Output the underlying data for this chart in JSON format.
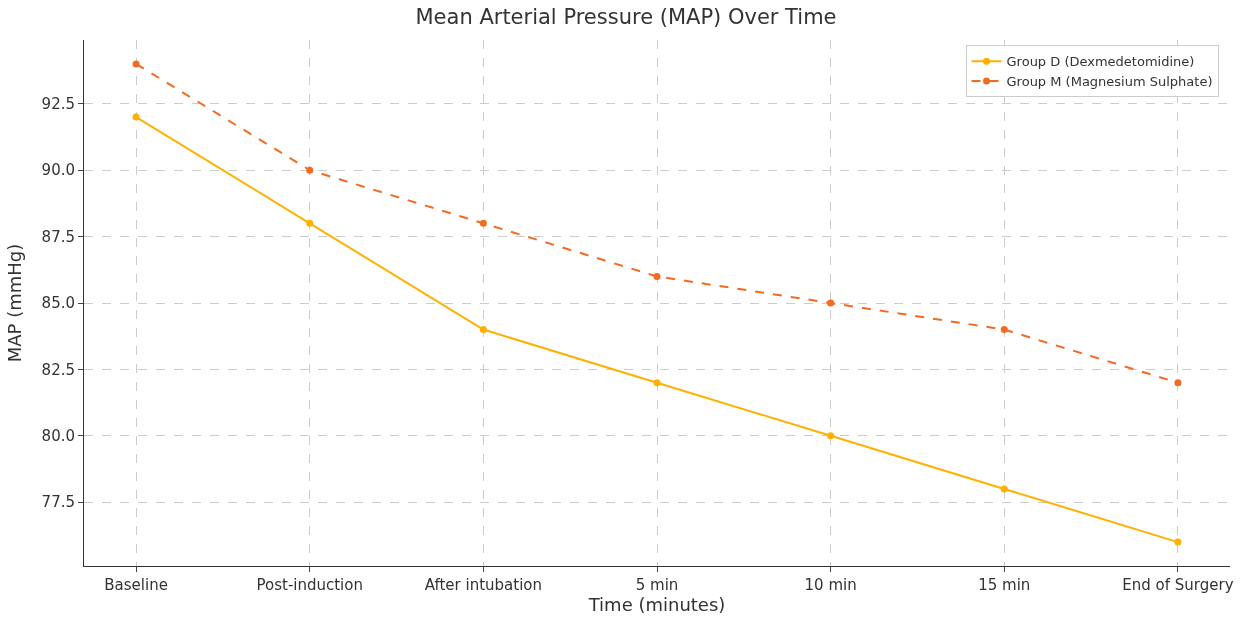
{
  "chart_data": {
    "type": "line",
    "title": "Mean Arterial Pressure (MAP) Over Time",
    "xlabel": "Time (minutes)",
    "ylabel": "MAP (mmHg)",
    "categories": [
      "Baseline",
      "Post-induction",
      "After intubation",
      "5 min",
      "10 min",
      "15 min",
      "End of Surgery"
    ],
    "series": [
      {
        "name": "Group D (Dexmedetomidine)",
        "color": "#ffb000",
        "values": [
          92,
          88,
          84,
          82,
          80,
          78,
          76
        ],
        "line_style": "solid"
      },
      {
        "name": "Group M (Magnesium Sulphate)",
        "color": "#f26b21",
        "values": [
          94,
          90,
          88,
          86,
          85,
          84,
          82
        ],
        "line_style": "dashed"
      }
    ],
    "ylim": [
      75.1,
      94.9
    ],
    "yticks": [
      77.5,
      {
        "value": 80,
        "label": "80.0"
      },
      82.5,
      {
        "value": 85,
        "label": "85.0"
      },
      87.5,
      {
        "value": 90,
        "label": "90.0"
      },
      92.5
    ],
    "grid": true,
    "legend": "top right",
    "marker": "circle"
  }
}
